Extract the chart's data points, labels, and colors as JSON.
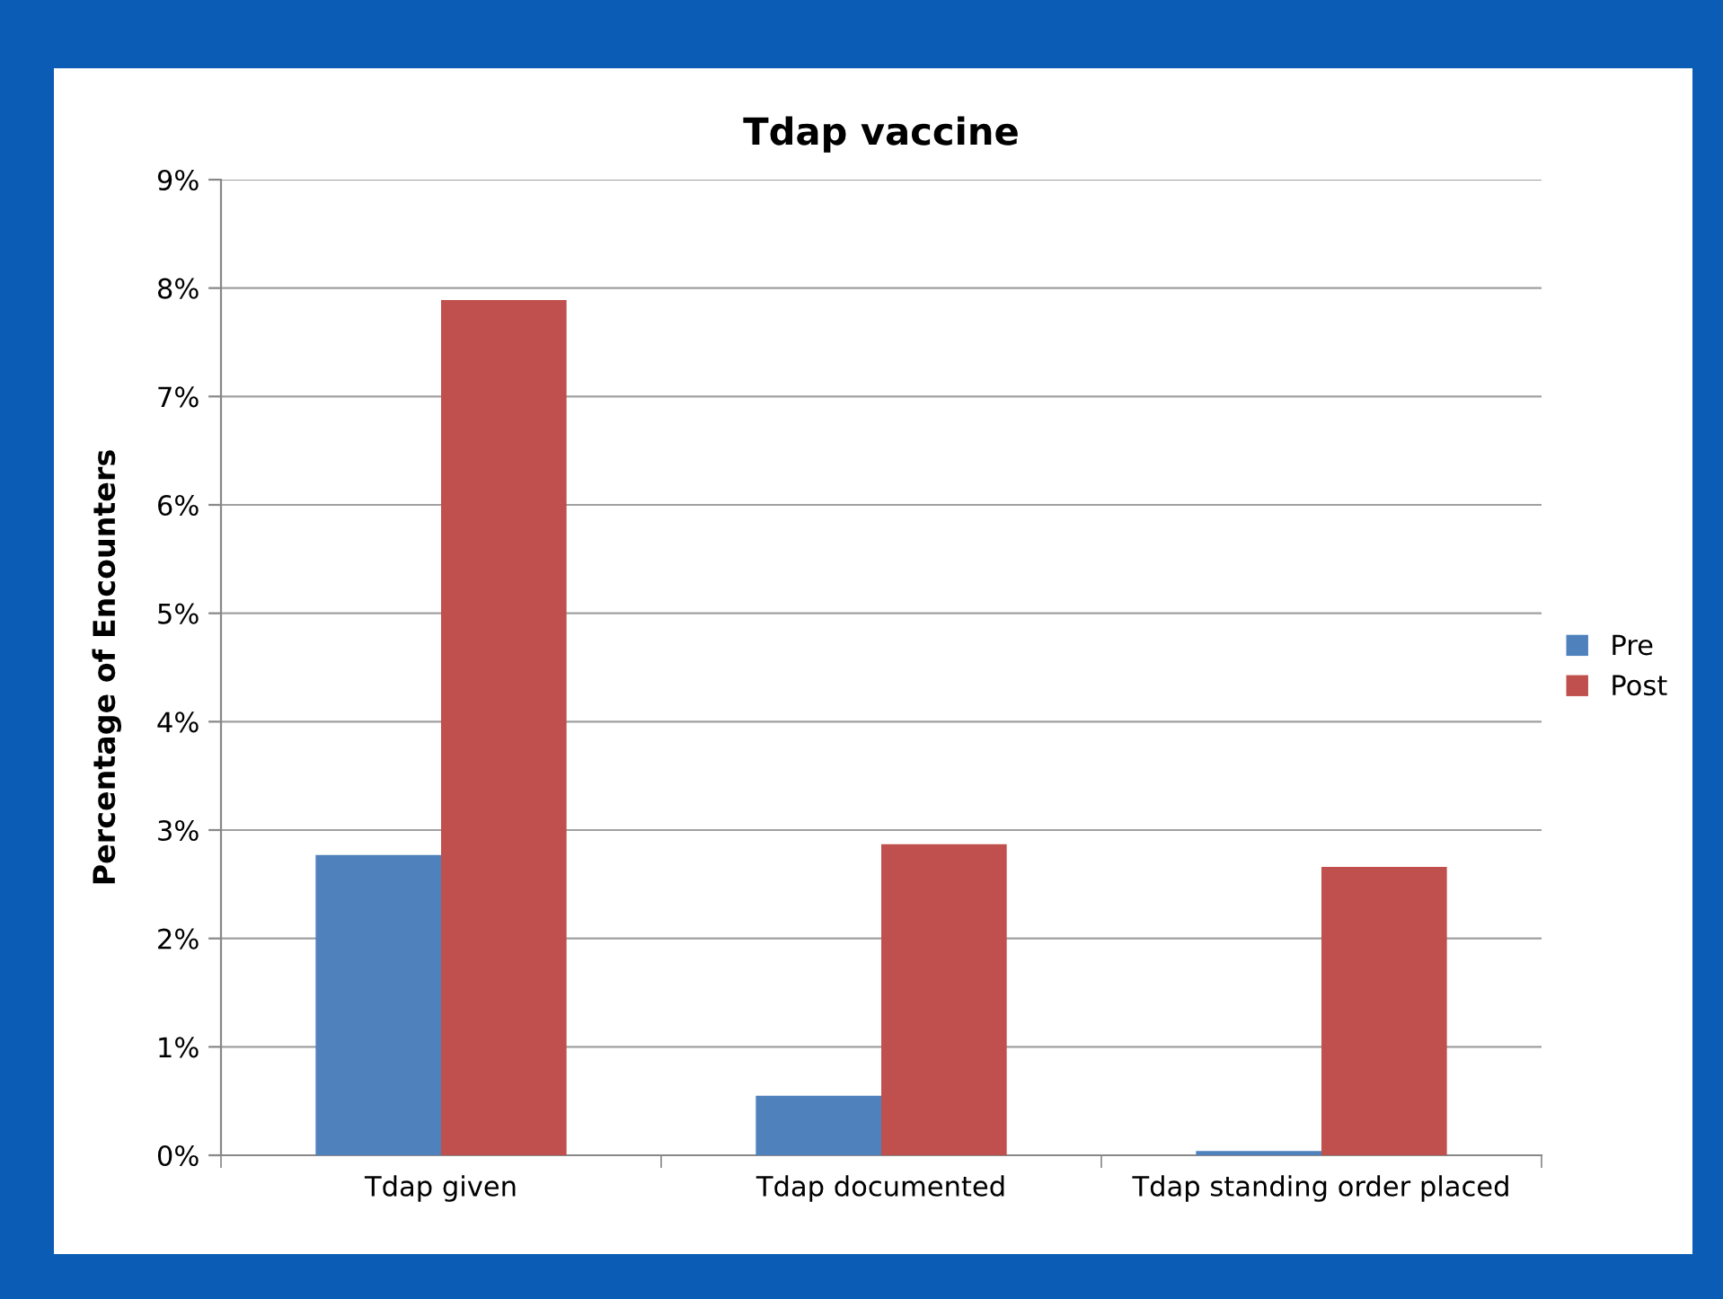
{
  "chart_data": {
    "type": "bar",
    "title": "Tdap vaccine",
    "ylabel": "Percentage of Encounters",
    "categories": [
      "Tdap given",
      "Tdap documented",
      "Tdap standing order placed"
    ],
    "series": [
      {
        "name": "Pre",
        "color": "#4f81bd",
        "values": [
          2.77,
          0.55,
          0.04
        ]
      },
      {
        "name": "Post",
        "color": "#c0504d",
        "values": [
          7.89,
          2.87,
          2.66
        ]
      }
    ],
    "ylim": [
      0,
      9
    ],
    "yticks": [
      {
        "value": 0,
        "label": "0%"
      },
      {
        "value": 1,
        "label": "1%"
      },
      {
        "value": 2,
        "label": "2%"
      },
      {
        "value": 3,
        "label": "3%"
      },
      {
        "value": 4,
        "label": "4%"
      },
      {
        "value": 5,
        "label": "5%"
      },
      {
        "value": 6,
        "label": "6%"
      },
      {
        "value": 7,
        "label": "7%"
      },
      {
        "value": 8,
        "label": "8%"
      },
      {
        "value": 9,
        "label": "9%"
      }
    ],
    "grid": "y",
    "legend": "right"
  }
}
